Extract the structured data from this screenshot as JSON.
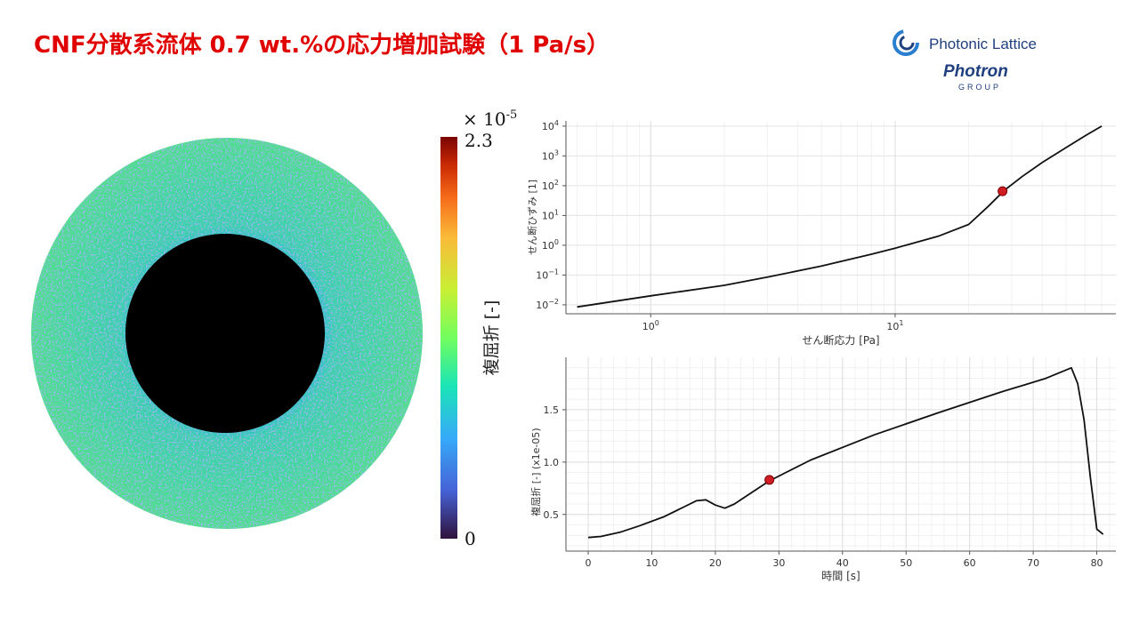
{
  "page": {
    "title": "CNF分散系流体 0.7 wt.%の応力増加試験（1 Pa/s）"
  },
  "logo": {
    "company": "Photonic Lattice",
    "brand": "Photron",
    "group": "GROUP"
  },
  "colorbar": {
    "exponent_base": "× 10",
    "exponent_power": "-5",
    "max_label": "2.3",
    "min_label": "0",
    "label": "複屈折 [-]"
  },
  "colors": {
    "title": "#e00000",
    "logo": "#1f3f7f",
    "marker": "#d01c24",
    "image_fill": "#3cd2a0",
    "hole": "#000000"
  },
  "chart_data": [
    {
      "type": "line",
      "xscale": "log",
      "yscale": "log",
      "xlabel": "せん断応力 [Pa]",
      "ylabel": "せん断ひずみ [1]",
      "xlim": [
        0.45,
        80
      ],
      "ylim": [
        0.005,
        15000
      ],
      "x_ticks": [
        {
          "value": 1,
          "base": "10",
          "exp": "0"
        },
        {
          "value": 10,
          "base": "10",
          "exp": "1"
        }
      ],
      "y_ticks": [
        {
          "value": 0.01,
          "base": "10",
          "exp": "−2"
        },
        {
          "value": 0.1,
          "base": "10",
          "exp": "−1"
        },
        {
          "value": 1,
          "base": "10",
          "exp": "0"
        },
        {
          "value": 10,
          "base": "10",
          "exp": "1"
        },
        {
          "value": 100,
          "base": "10",
          "exp": "2"
        },
        {
          "value": 1000,
          "base": "10",
          "exp": "3"
        },
        {
          "value": 10000,
          "base": "10",
          "exp": "4"
        }
      ],
      "x": [
        0.5,
        1,
        2,
        3,
        5,
        8,
        10,
        15,
        20,
        24,
        28,
        33,
        40,
        50,
        60,
        70
      ],
      "y": [
        0.0085,
        0.02,
        0.045,
        0.085,
        0.2,
        0.5,
        0.8,
        2.0,
        5.0,
        20,
        70,
        200,
        600,
        1900,
        4800,
        10000
      ],
      "highlight": {
        "x": 27.5,
        "y": 65
      }
    },
    {
      "type": "line",
      "xlabel": "時間 [s]",
      "ylabel": "複屈折 [-] (x1e-05)",
      "xlim": [
        -3.5,
        83
      ],
      "ylim": [
        0.15,
        2.0
      ],
      "x_ticks": [
        "0",
        "10",
        "20",
        "30",
        "40",
        "50",
        "60",
        "70",
        "80"
      ],
      "y_ticks": [
        "0.5",
        "1.0",
        "1.5"
      ],
      "x": [
        0,
        2,
        5,
        8,
        12,
        15,
        17,
        18.5,
        20,
        21.5,
        23,
        25,
        28.5,
        35,
        45,
        55,
        65,
        72,
        76,
        77,
        78,
        79,
        80,
        81
      ],
      "y": [
        0.28,
        0.29,
        0.33,
        0.39,
        0.48,
        0.57,
        0.63,
        0.64,
        0.59,
        0.56,
        0.6,
        0.68,
        0.82,
        1.02,
        1.26,
        1.47,
        1.67,
        1.8,
        1.9,
        1.75,
        1.4,
        0.85,
        0.36,
        0.31
      ],
      "highlight": {
        "x": 28.5,
        "y": 0.83
      }
    }
  ]
}
